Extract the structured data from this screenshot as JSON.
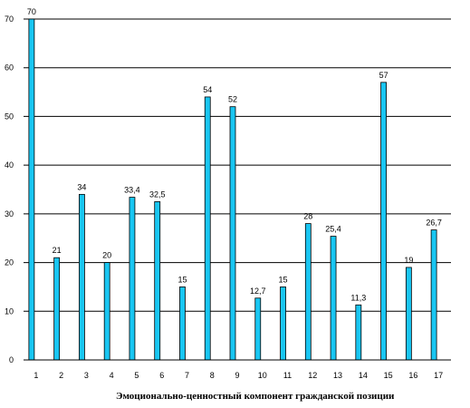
{
  "chart_data": {
    "type": "bar",
    "title": "",
    "xlabel": "Эмоционально-ценностный компонент гражданской позиции",
    "ylabel": "",
    "categories": [
      "1",
      "2",
      "3",
      "4",
      "5",
      "6",
      "7",
      "8",
      "9",
      "10",
      "11",
      "12",
      "13",
      "14",
      "15",
      "16",
      "17"
    ],
    "values": [
      70,
      21,
      34,
      20,
      33.4,
      32.5,
      15,
      54,
      52,
      12.7,
      15,
      28,
      25.4,
      11.3,
      57,
      19,
      26.7
    ],
    "value_labels": [
      "70",
      "21",
      "34",
      "20",
      "33,4",
      "32,5",
      "15",
      "54",
      "52",
      "12,7",
      "15",
      "28",
      "25,4",
      "11,3",
      "57",
      "19",
      "26,7"
    ],
    "ylim": [
      0,
      70
    ],
    "yticks": [
      "0",
      "10",
      "20",
      "30",
      "40",
      "50",
      "60",
      "70"
    ],
    "grid": true,
    "legend": "none",
    "bar_color": "#19C6F2",
    "bar_stroke": "#000000"
  }
}
